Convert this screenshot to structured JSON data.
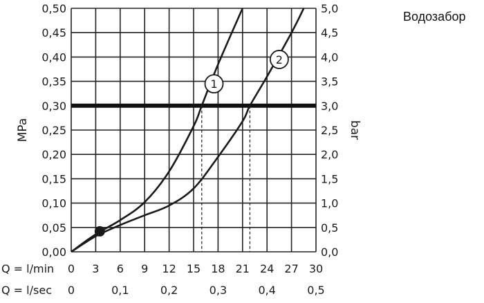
{
  "title": "Водозабор",
  "chart_data": {
    "type": "line",
    "xlabel": "",
    "ylabel_left": "MPa",
    "ylabel_right": "bar",
    "xlim": [
      0,
      30
    ],
    "ylim": [
      0,
      0.5
    ],
    "x_ticks": [
      0,
      3,
      6,
      9,
      12,
      15,
      18,
      21,
      24,
      27,
      30
    ],
    "y_ticks": [
      0,
      0.05,
      0.1,
      0.15,
      0.2,
      0.25,
      0.3,
      0.35,
      0.4,
      0.45,
      0.5
    ],
    "x_axis_rows": [
      {
        "prefix": "Q = l/min",
        "labels": [
          {
            "x": 0,
            "text": "0"
          },
          {
            "x": 3,
            "text": "3"
          },
          {
            "x": 6,
            "text": "6"
          },
          {
            "x": 9,
            "text": "9"
          },
          {
            "x": 12,
            "text": "12"
          },
          {
            "x": 15,
            "text": "15"
          },
          {
            "x": 18,
            "text": "18"
          },
          {
            "x": 21,
            "text": "21"
          },
          {
            "x": 24,
            "text": "24"
          },
          {
            "x": 27,
            "text": "27"
          },
          {
            "x": 30,
            "text": "30"
          }
        ]
      },
      {
        "prefix": "Q = l/sec",
        "labels": [
          {
            "x": 0,
            "text": "0"
          },
          {
            "x": 6,
            "text": "0,1"
          },
          {
            "x": 12,
            "text": "0,2"
          },
          {
            "x": 18,
            "text": "0,3"
          },
          {
            "x": 24,
            "text": "0,4"
          },
          {
            "x": 30,
            "text": "0,5"
          }
        ]
      }
    ],
    "y_left_labels": [
      "0,00",
      "0,05",
      "0,10",
      "0,15",
      "0,20",
      "0,25",
      "0,30",
      "0,35",
      "0,40",
      "0,45",
      "0,50"
    ],
    "y_right_labels": [
      "0,0",
      "0,5",
      "1,0",
      "1,5",
      "2,0",
      "2,5",
      "3,0",
      "3,5",
      "4,0",
      "4,5",
      "5,0"
    ],
    "grid": true,
    "reference_line": {
      "y": 0.3
    },
    "drop_lines": [
      {
        "x": 16.0,
        "y": 0.3
      },
      {
        "x": 21.9,
        "y": 0.3
      }
    ],
    "marker_point": {
      "x": 3.5,
      "y": 0.042
    },
    "series": [
      {
        "name": "1",
        "label_at": {
          "x": 17.5,
          "y": 0.345
        },
        "points": [
          [
            0,
            0
          ],
          [
            3,
            0.036
          ],
          [
            6,
            0.065
          ],
          [
            9,
            0.102
          ],
          [
            12,
            0.165
          ],
          [
            15,
            0.258
          ],
          [
            16,
            0.3
          ],
          [
            18,
            0.385
          ],
          [
            21,
            0.5
          ]
        ]
      },
      {
        "name": "2",
        "label_at": {
          "x": 25.5,
          "y": 0.395
        },
        "points": [
          [
            0,
            0
          ],
          [
            3,
            0.032
          ],
          [
            6,
            0.055
          ],
          [
            9,
            0.075
          ],
          [
            12,
            0.095
          ],
          [
            15,
            0.13
          ],
          [
            18,
            0.195
          ],
          [
            21,
            0.268
          ],
          [
            21.9,
            0.3
          ],
          [
            24,
            0.36
          ],
          [
            27,
            0.45
          ],
          [
            28.5,
            0.5
          ]
        ]
      }
    ]
  },
  "colors": {
    "curve": "#1a1a1a",
    "grid": "#222222",
    "reference_line": "#111111",
    "background": "#ffffff"
  }
}
